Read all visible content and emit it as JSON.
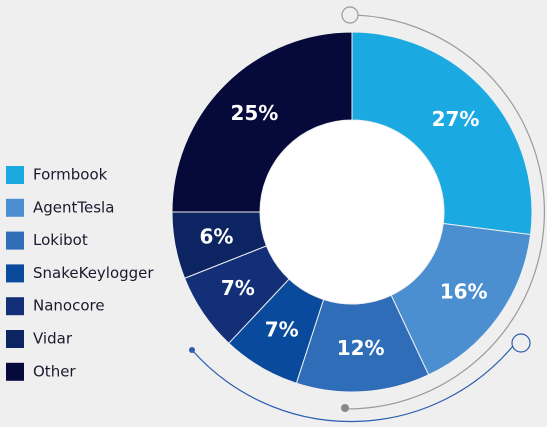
{
  "chart_data": {
    "type": "donut",
    "categories": [
      "Formbook",
      "AgentTesla",
      "Lokibot",
      "SnakeKeylogger",
      "Nanocore",
      "Vidar",
      "Other"
    ],
    "values": [
      27,
      16,
      12,
      7,
      7,
      6,
      25
    ],
    "value_labels": [
      "27%",
      "16%",
      "12%",
      "7%",
      "7%",
      "6%",
      "25%"
    ],
    "colors": [
      "#1ba9e2",
      "#4b8fd1",
      "#2f6db9",
      "#0a4a9d",
      "#132f78",
      "#0c2462",
      "#050a3a"
    ],
    "legend": "left"
  }
}
